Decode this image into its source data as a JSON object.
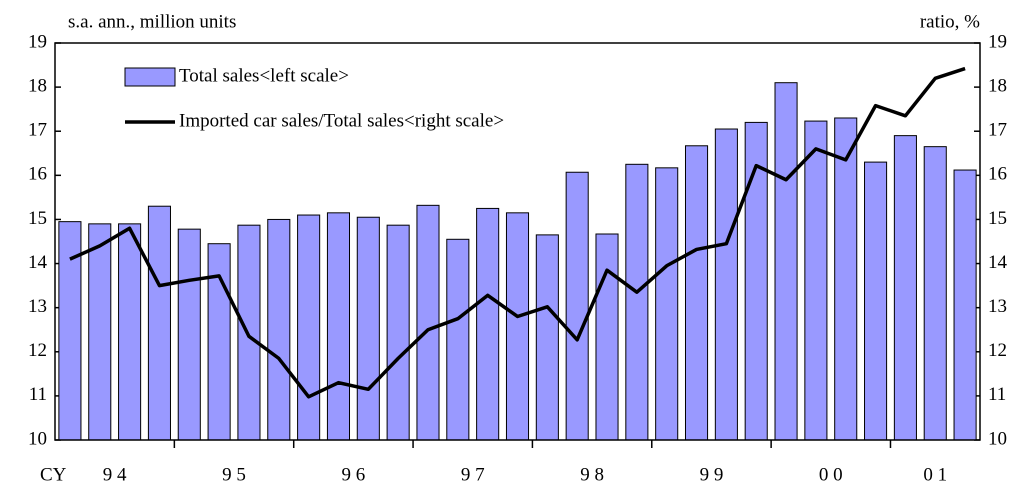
{
  "chart_data": {
    "type": "bar_line",
    "y_label": "s.a. ann., million units",
    "y2_label": "ratio, %",
    "x_prefix": "CY",
    "categories": [
      "9 4",
      null,
      null,
      null,
      "9 5",
      null,
      null,
      null,
      "9 6",
      null,
      null,
      null,
      "9 7",
      null,
      null,
      null,
      "9 8",
      null,
      null,
      null,
      "9 9",
      null,
      null,
      null,
      "0 0",
      null,
      null,
      null,
      "0 1",
      null,
      null
    ],
    "series": [
      {
        "name": "Total sales<left scale>",
        "type": "bar",
        "color": "#9999ff",
        "values": [
          14.95,
          14.9,
          14.9,
          15.3,
          14.78,
          14.45,
          14.87,
          15.0,
          15.1,
          15.15,
          15.05,
          14.87,
          15.32,
          14.55,
          15.25,
          15.15,
          14.65,
          16.07,
          14.67,
          16.25,
          16.17,
          16.67,
          17.05,
          17.2,
          18.1,
          17.23,
          17.3,
          16.3,
          16.9,
          16.65,
          16.12
        ]
      },
      {
        "name": "Imported car sales/Total sales<right scale>",
        "type": "line",
        "color": "#000000",
        "axis": "y2",
        "values": [
          14.1,
          14.4,
          14.8,
          13.5,
          13.62,
          13.72,
          12.35,
          11.85,
          10.98,
          11.3,
          11.15,
          11.85,
          12.5,
          12.75,
          13.28,
          12.8,
          13.02,
          12.27,
          13.85,
          13.35,
          13.95,
          14.32,
          14.45,
          16.22,
          15.9,
          16.6,
          16.35,
          17.58,
          17.35,
          18.2,
          18.42
        ]
      }
    ],
    "ylim": [
      10,
      19
    ],
    "yticks": [
      10,
      11,
      12,
      13,
      14,
      15,
      16,
      17,
      18,
      19
    ],
    "y2lim": [
      10,
      19
    ],
    "y2ticks": [
      10,
      11,
      12,
      13,
      14,
      15,
      16,
      17,
      18,
      19
    ]
  }
}
